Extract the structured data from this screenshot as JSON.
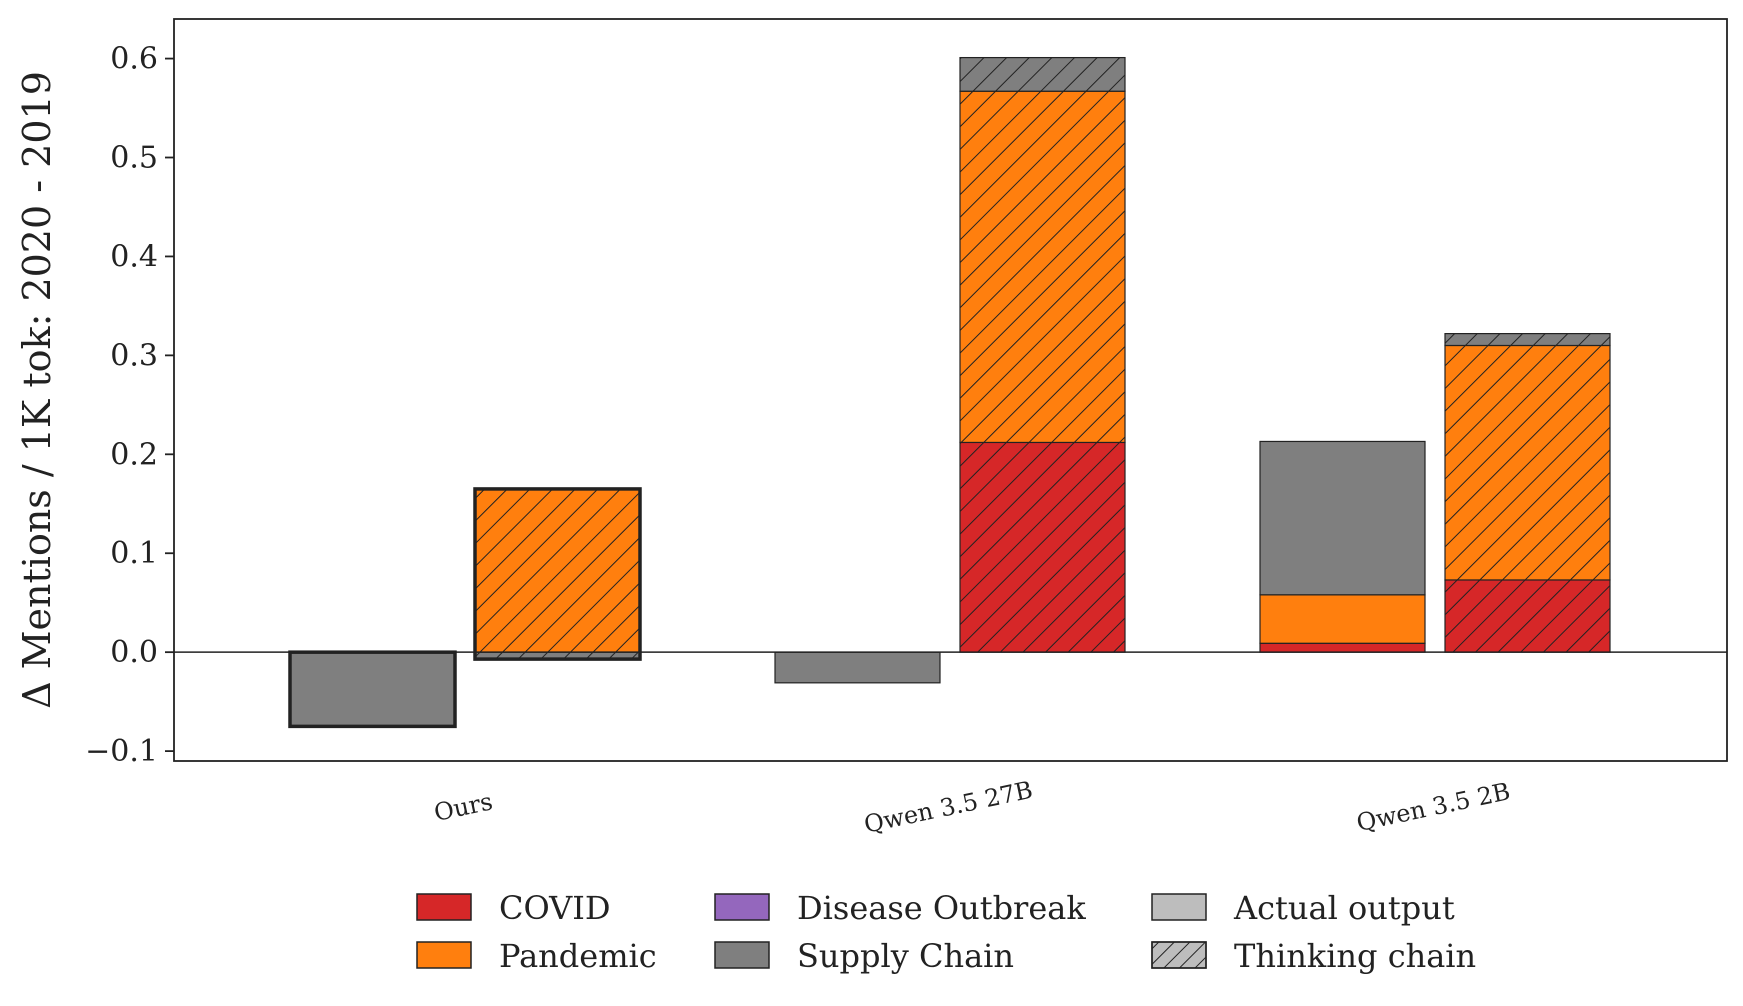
{
  "chart_data": {
    "type": "bar",
    "stacked": true,
    "title": "",
    "xlabel": "",
    "ylabel": "Δ Mentions / 1K tok: 2020 - 2019",
    "ylim": [
      -0.11,
      0.64
    ],
    "yticks": [
      -0.1,
      0.0,
      0.1,
      0.2,
      0.3,
      0.4,
      0.5,
      0.6
    ],
    "ytick_labels": [
      "−0.1",
      "0.0",
      "0.1",
      "0.2",
      "0.3",
      "0.4",
      "0.5",
      "0.6"
    ],
    "grid": false,
    "legend_position": "bottom-center",
    "categories": [
      "Ours",
      "Qwen 3.5 27B",
      "Qwen 3.5 2B"
    ],
    "highlight_category": "Ours",
    "bar_types": [
      {
        "name": "Actual output",
        "hatch": false
      },
      {
        "name": "Thinking chain",
        "hatch": true
      }
    ],
    "series": [
      {
        "name": "COVID",
        "color": "#d62728",
        "actual_output": [
          0.0,
          0.0,
          0.009
        ],
        "thinking_chain": [
          0.0,
          0.212,
          0.073
        ]
      },
      {
        "name": "Pandemic",
        "color": "#ff7f0e",
        "actual_output": [
          0.0,
          0.0,
          0.049
        ],
        "thinking_chain": [
          0.165,
          0.355,
          0.237
        ]
      },
      {
        "name": "Disease Outbreak",
        "color": "#9467bd",
        "actual_output": [
          0.0,
          0.0,
          0.0
        ],
        "thinking_chain": [
          0.0,
          0.0,
          0.0
        ]
      },
      {
        "name": "Supply Chain",
        "color": "#7f7f7f",
        "actual_output": [
          -0.075,
          -0.031,
          0.155
        ],
        "thinking_chain": [
          -0.007,
          0.034,
          0.012
        ]
      }
    ],
    "legend": [
      {
        "label": "COVID",
        "color": "#d62728",
        "hatch": false
      },
      {
        "label": "Pandemic",
        "color": "#ff7f0e",
        "hatch": false
      },
      {
        "label": "Disease Outbreak",
        "color": "#9467bd",
        "hatch": false
      },
      {
        "label": "Supply Chain",
        "color": "#7f7f7f",
        "hatch": false
      },
      {
        "label": "Actual output",
        "color": "#bdbdbd",
        "hatch": false
      },
      {
        "label": "Thinking chain",
        "color": "#bdbdbd",
        "hatch": true
      }
    ]
  }
}
